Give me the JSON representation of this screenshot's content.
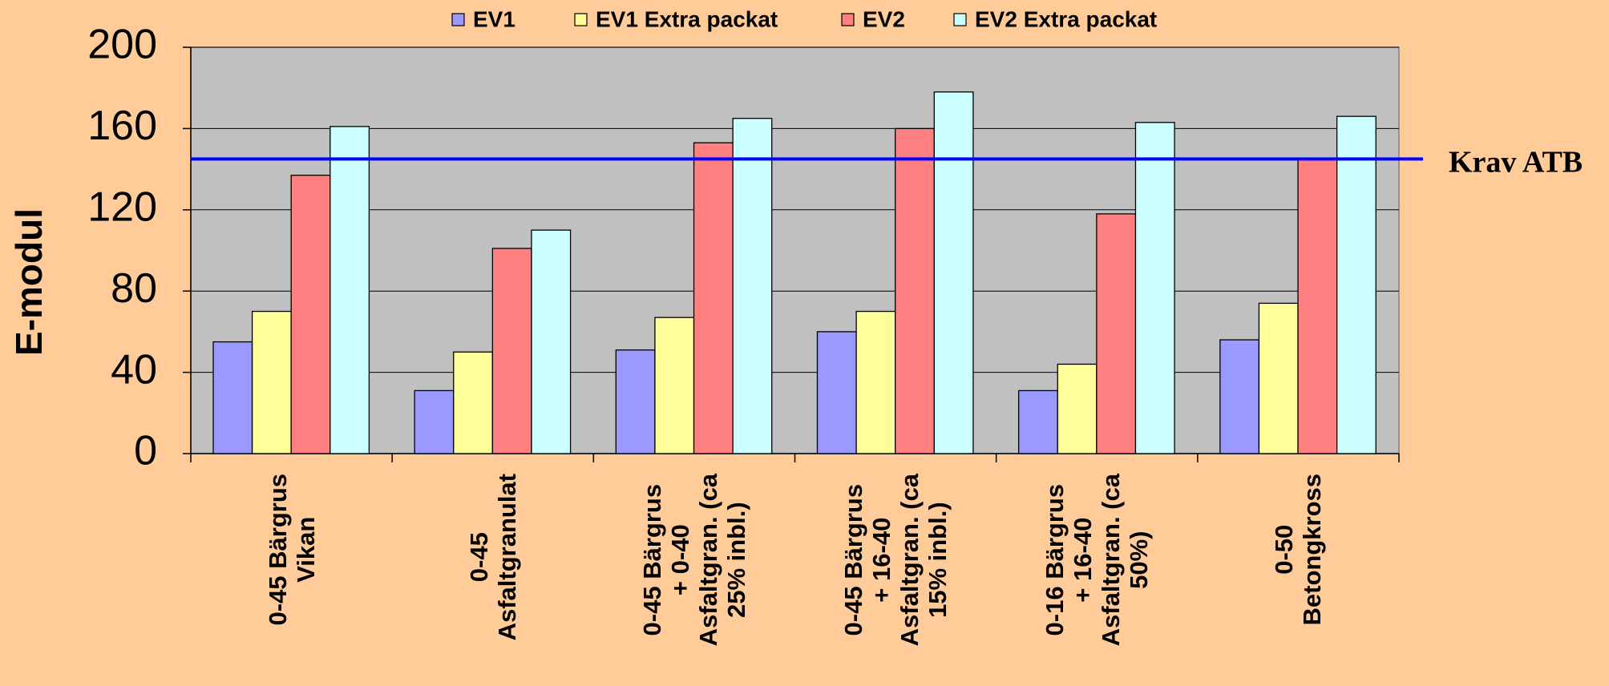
{
  "chart_data": {
    "type": "bar",
    "ylabel": "E-modul",
    "categories": [
      "0-45 Bärgrus\nVikan",
      "0-45\nAsfaltgranulat",
      "0-45 Bärgrus\n+ 0-40\nAsfaltgran. (ca\n25% inbl.)",
      "0-45 Bärgrus\n+ 16-40\nAsfaltgran. (ca\n15% inbl.)",
      "0-16 Bärgrus\n+ 16-40\nAsfaltgran. (ca\n50%)",
      "0-50\nBetongkross"
    ],
    "series": [
      {
        "name": "EV1",
        "color": "#9999ff",
        "values": [
          55,
          31,
          51,
          60,
          31,
          56
        ]
      },
      {
        "name": "EV1 Extra packat",
        "color": "#ffff99",
        "values": [
          70,
          50,
          67,
          70,
          44,
          74
        ]
      },
      {
        "name": "EV2",
        "color": "#ff8080",
        "values": [
          137,
          101,
          153,
          160,
          118,
          145
        ]
      },
      {
        "name": "EV2 Extra packat",
        "color": "#ccffff",
        "values": [
          161,
          110,
          165,
          178,
          163,
          166
        ]
      }
    ],
    "reference_line": {
      "value": 145,
      "label": "Krav ATB",
      "color": "#0000ff"
    },
    "ylim": [
      0,
      200
    ],
    "yticks": [
      0,
      40,
      80,
      120,
      160,
      200
    ],
    "grid": true,
    "legend": "top"
  }
}
